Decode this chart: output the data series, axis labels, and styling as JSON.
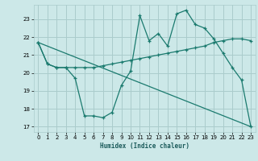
{
  "xlabel": "Humidex (Indice chaleur)",
  "bg_color": "#cce8e8",
  "grid_color": "#aacccc",
  "line_color": "#1a7a6e",
  "xlim": [
    -0.5,
    23.5
  ],
  "ylim": [
    16.7,
    23.8
  ],
  "yticks": [
    17,
    18,
    19,
    20,
    21,
    22,
    23
  ],
  "xticks": [
    0,
    1,
    2,
    3,
    4,
    5,
    6,
    7,
    8,
    9,
    10,
    11,
    12,
    13,
    14,
    15,
    16,
    17,
    18,
    19,
    20,
    21,
    22,
    23
  ],
  "series1_x": [
    0,
    1,
    2,
    3,
    4,
    5,
    6,
    7,
    8,
    9,
    10,
    11,
    12,
    13,
    14,
    15,
    16,
    17,
    18,
    19,
    20,
    21,
    22,
    23
  ],
  "series1_y": [
    21.7,
    20.5,
    20.3,
    20.3,
    19.7,
    17.6,
    17.6,
    17.5,
    17.8,
    19.3,
    20.1,
    23.2,
    21.8,
    22.2,
    21.5,
    23.3,
    23.5,
    22.7,
    22.5,
    21.9,
    21.1,
    20.3,
    19.6,
    17.0
  ],
  "series2_x": [
    0,
    1,
    2,
    3,
    4,
    5,
    6,
    7,
    8,
    9,
    10,
    11,
    12,
    13,
    14,
    15,
    16,
    17,
    18,
    19,
    20,
    21,
    22,
    23
  ],
  "series2_y": [
    21.7,
    20.5,
    20.3,
    20.3,
    20.3,
    20.3,
    20.3,
    20.4,
    20.5,
    20.6,
    20.7,
    20.8,
    20.9,
    21.0,
    21.1,
    21.2,
    21.3,
    21.4,
    21.5,
    21.7,
    21.8,
    21.9,
    21.9,
    21.8
  ],
  "series3_x": [
    0,
    23
  ],
  "series3_y": [
    21.7,
    17.0
  ]
}
